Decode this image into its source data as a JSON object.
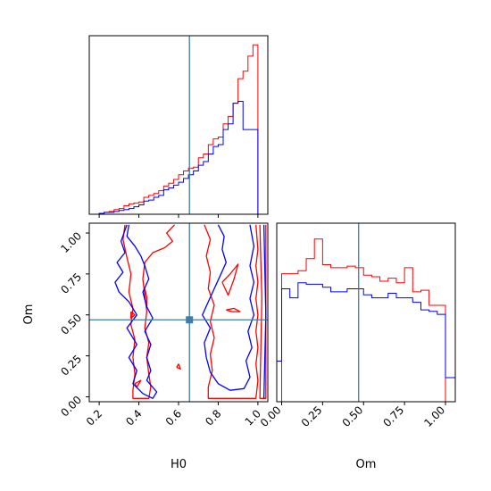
{
  "chart_data": {
    "type": "corner",
    "parameters": [
      "H0",
      "Om"
    ],
    "truth": {
      "H0": 0.655,
      "Om": 0.47
    },
    "colors": {
      "red_series": "#ff0000",
      "blue_series": "#0000ff",
      "truth": "#3f7ba6"
    },
    "axes": {
      "H0": {
        "range": [
          0.15,
          1.05
        ],
        "ticks": [
          0.2,
          0.4,
          0.6,
          0.8,
          1.0
        ],
        "tick_labels": [
          "0.2",
          "0.4",
          "0.6",
          "0.8",
          "1.0"
        ],
        "label": "H0"
      },
      "Om": {
        "range": [
          -0.03,
          1.06
        ],
        "ticks": [
          0.0,
          0.25,
          0.5,
          0.75,
          1.0
        ],
        "tick_labels": [
          "0.00",
          "0.25",
          "0.50",
          "0.75",
          "1.00"
        ],
        "label": "Om"
      }
    },
    "hist_H0": {
      "bin_edges": [
        0.15,
        0.175,
        0.2,
        0.225,
        0.25,
        0.275,
        0.3,
        0.325,
        0.35,
        0.375,
        0.4,
        0.425,
        0.45,
        0.475,
        0.5,
        0.525,
        0.55,
        0.575,
        0.6,
        0.625,
        0.65,
        0.675,
        0.7,
        0.725,
        0.75,
        0.775,
        0.8,
        0.825,
        0.85,
        0.875,
        0.9,
        0.925,
        0.95,
        0.975,
        1.0,
        1.025,
        1.05
      ],
      "red": [
        0.0,
        0.0,
        0.005,
        0.01,
        0.015,
        0.025,
        0.03,
        0.045,
        0.055,
        0.06,
        0.065,
        0.09,
        0.1,
        0.11,
        0.125,
        0.15,
        0.165,
        0.185,
        0.21,
        0.23,
        0.245,
        0.25,
        0.3,
        0.32,
        0.37,
        0.4,
        0.41,
        0.48,
        0.52,
        0.59,
        0.72,
        0.76,
        0.84,
        0.9,
        0.0,
        0.0
      ],
      "blue": [
        0.0,
        0.0,
        0.005,
        0.01,
        0.01,
        0.015,
        0.02,
        0.025,
        0.03,
        0.04,
        0.05,
        0.07,
        0.075,
        0.09,
        0.1,
        0.13,
        0.14,
        0.155,
        0.17,
        0.19,
        0.21,
        0.23,
        0.26,
        0.28,
        0.32,
        0.36,
        0.37,
        0.45,
        0.48,
        0.59,
        0.6,
        0.45,
        0.45,
        0.45,
        0.0,
        0.0
      ],
      "ymax": 0.92
    },
    "hist_Om": {
      "bin_edges": [
        -0.03,
        0.0,
        0.05,
        0.1,
        0.15,
        0.2,
        0.25,
        0.3,
        0.35,
        0.4,
        0.45,
        0.5,
        0.55,
        0.6,
        0.65,
        0.7,
        0.75,
        0.8,
        0.85,
        0.9,
        0.95,
        1.0,
        1.06
      ],
      "red": [
        0.0,
        0.85,
        0.85,
        0.87,
        0.95,
        1.08,
        0.91,
        0.89,
        0.89,
        0.9,
        0.89,
        0.84,
        0.83,
        0.8,
        0.82,
        0.79,
        0.89,
        0.73,
        0.74,
        0.64,
        0.64,
        0.0
      ],
      "blue": [
        0.27,
        0.75,
        0.69,
        0.79,
        0.78,
        0.78,
        0.76,
        0.73,
        0.73,
        0.75,
        0.75,
        0.71,
        0.69,
        0.69,
        0.72,
        0.69,
        0.69,
        0.66,
        0.61,
        0.6,
        0.58,
        0.16
      ],
      "ymax": 1.15
    },
    "contours_2d": {
      "red": [
        [
          [
            0.33,
            1.05
          ],
          [
            0.32,
            0.96
          ],
          [
            0.34,
            0.85
          ],
          [
            0.36,
            0.75
          ],
          [
            0.35,
            0.64
          ],
          [
            0.37,
            0.54
          ],
          [
            0.36,
            0.44
          ],
          [
            0.38,
            0.35
          ],
          [
            0.37,
            0.24
          ],
          [
            0.38,
            0.14
          ],
          [
            0.37,
            0.04
          ],
          [
            0.37,
            -0.01
          ],
          [
            0.45,
            -0.01
          ],
          [
            0.46,
            0.06
          ],
          [
            0.45,
            0.14
          ],
          [
            0.44,
            0.24
          ],
          [
            0.45,
            0.33
          ],
          [
            0.43,
            0.42
          ],
          [
            0.44,
            0.52
          ],
          [
            0.43,
            0.62
          ],
          [
            0.42,
            0.72
          ],
          [
            0.43,
            0.82
          ],
          [
            0.47,
            0.88
          ],
          [
            0.53,
            0.91
          ],
          [
            0.57,
            0.95
          ],
          [
            0.54,
            1.0
          ],
          [
            0.58,
            1.05
          ]
        ],
        [
          [
            0.73,
            1.05
          ],
          [
            0.76,
            0.96
          ],
          [
            0.74,
            0.86
          ],
          [
            0.76,
            0.76
          ],
          [
            0.75,
            0.66
          ],
          [
            0.78,
            0.56
          ],
          [
            0.76,
            0.46
          ],
          [
            0.78,
            0.36
          ],
          [
            0.76,
            0.26
          ],
          [
            0.77,
            0.16
          ],
          [
            0.75,
            0.06
          ],
          [
            0.75,
            -0.01
          ],
          [
            0.99,
            -0.01
          ],
          [
            1.0,
            0.1
          ],
          [
            0.99,
            0.2
          ],
          [
            1.0,
            0.3
          ],
          [
            0.99,
            0.4
          ],
          [
            1.0,
            0.5
          ],
          [
            0.99,
            0.6
          ],
          [
            1.0,
            0.7
          ],
          [
            0.99,
            0.8
          ],
          [
            1.0,
            0.9
          ],
          [
            0.99,
            1.05
          ]
        ],
        [
          [
            0.43,
            0.66
          ],
          [
            0.44,
            0.61
          ],
          [
            0.44,
            0.55
          ],
          [
            0.43,
            0.6
          ],
          [
            0.43,
            0.66
          ]
        ],
        [
          [
            0.84,
            0.53
          ],
          [
            0.88,
            0.54
          ],
          [
            0.91,
            0.52
          ],
          [
            0.87,
            0.52
          ],
          [
            0.84,
            0.53
          ]
        ],
        [
          [
            0.82,
            0.7
          ],
          [
            0.86,
            0.75
          ],
          [
            0.9,
            0.81
          ],
          [
            0.88,
            0.72
          ],
          [
            0.85,
            0.62
          ],
          [
            0.82,
            0.7
          ]
        ],
        [
          [
            0.36,
            0.52
          ],
          [
            0.38,
            0.5
          ],
          [
            0.36,
            0.48
          ],
          [
            0.36,
            0.52
          ]
        ],
        [
          [
            0.38,
            0.08
          ],
          [
            0.41,
            0.1
          ],
          [
            0.39,
            0.06
          ],
          [
            0.38,
            0.08
          ]
        ],
        [
          [
            0.59,
            0.18
          ],
          [
            0.6,
            0.2
          ],
          [
            0.61,
            0.17
          ],
          [
            0.59,
            0.18
          ]
        ],
        [
          [
            1.01,
            1.05
          ],
          [
            1.02,
            0.6
          ],
          [
            1.01,
            -0.01
          ],
          [
            1.04,
            -0.01
          ],
          [
            1.04,
            1.05
          ]
        ]
      ],
      "blue": [
        [
          [
            0.35,
            1.05
          ],
          [
            0.34,
            0.98
          ],
          [
            0.38,
            0.92
          ],
          [
            0.41,
            0.86
          ],
          [
            0.43,
            0.8
          ],
          [
            0.45,
            0.72
          ],
          [
            0.42,
            0.64
          ],
          [
            0.44,
            0.55
          ],
          [
            0.47,
            0.48
          ],
          [
            0.43,
            0.4
          ],
          [
            0.46,
            0.32
          ],
          [
            0.44,
            0.24
          ],
          [
            0.46,
            0.16
          ],
          [
            0.44,
            0.1
          ],
          [
            0.49,
            0.03
          ],
          [
            0.47,
            -0.01
          ],
          [
            0.42,
            0.02
          ],
          [
            0.37,
            0.08
          ],
          [
            0.39,
            0.16
          ],
          [
            0.35,
            0.24
          ],
          [
            0.39,
            0.32
          ],
          [
            0.34,
            0.42
          ],
          [
            0.39,
            0.5
          ],
          [
            0.35,
            0.58
          ],
          [
            0.3,
            0.64
          ],
          [
            0.28,
            0.7
          ],
          [
            0.32,
            0.76
          ],
          [
            0.29,
            0.82
          ],
          [
            0.33,
            0.88
          ],
          [
            0.31,
            0.95
          ],
          [
            0.34,
            1.05
          ]
        ],
        [
          [
            0.8,
            1.05
          ],
          [
            0.83,
            0.98
          ],
          [
            0.82,
            0.9
          ],
          [
            0.84,
            0.82
          ],
          [
            0.81,
            0.74
          ],
          [
            0.78,
            0.66
          ],
          [
            0.75,
            0.58
          ],
          [
            0.72,
            0.5
          ],
          [
            0.76,
            0.42
          ],
          [
            0.73,
            0.33
          ],
          [
            0.74,
            0.24
          ],
          [
            0.76,
            0.15
          ],
          [
            0.8,
            0.08
          ],
          [
            0.86,
            0.04
          ],
          [
            0.93,
            0.05
          ],
          [
            0.96,
            0.12
          ],
          [
            0.94,
            0.22
          ],
          [
            0.97,
            0.3
          ],
          [
            0.95,
            0.4
          ],
          [
            0.98,
            0.5
          ],
          [
            0.96,
            0.6
          ],
          [
            0.98,
            0.7
          ],
          [
            0.96,
            0.8
          ],
          [
            0.98,
            0.92
          ],
          [
            0.96,
            1.05
          ]
        ],
        [
          [
            1.03,
            1.05
          ],
          [
            1.04,
            0.5
          ],
          [
            1.03,
            -0.01
          ]
        ]
      ]
    }
  }
}
